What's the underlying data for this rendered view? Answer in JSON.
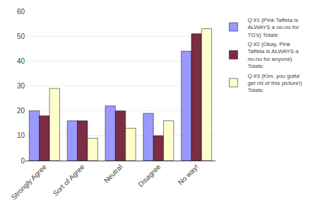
{
  "chart_data": {
    "type": "bar",
    "categories": [
      "Strongly Agree",
      "Sort of Agree",
      "Neutral",
      "Disagree",
      "No way!"
    ],
    "series": [
      {
        "name": "Q #1 (Pink Taffeta is\nALWAYS a no-no for\nTG's) Totals:",
        "color": "#9999ff",
        "values": [
          20,
          16,
          22,
          19,
          44
        ]
      },
      {
        "name": "Q #2 (Okay, Pink\nTaffeta is ALWAYS a\nno-no for anyone)\nTotals:",
        "color": "#7b2d42",
        "values": [
          18,
          16,
          20,
          10,
          51
        ]
      },
      {
        "name": "Q #3 (Kim, you gotta'\nget rid of this picture!)\nTotals:",
        "color": "#ffffcc",
        "values": [
          29,
          9,
          13,
          16,
          53
        ]
      }
    ],
    "ylim": [
      0,
      60
    ],
    "yticks": [
      0,
      10,
      20,
      30,
      40,
      50,
      60
    ],
    "grid": true,
    "legend": "right"
  }
}
